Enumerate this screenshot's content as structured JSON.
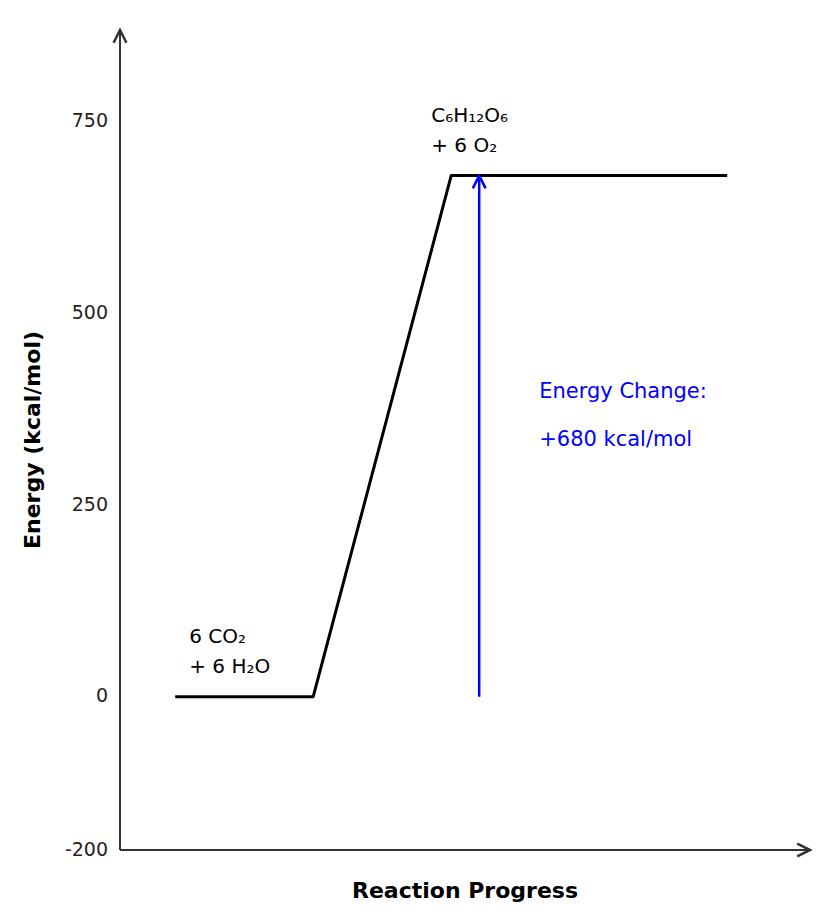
{
  "chart_data": {
    "type": "line",
    "x_label": "Reaction Progress",
    "y_label": "Energy  (kcal/mol)",
    "x": [
      0.8,
      2.8,
      4.8,
      8.8
    ],
    "values": [
      0,
      0,
      680,
      680
    ],
    "color": "#000000",
    "xlim": [
      0,
      10
    ],
    "ylim": [
      -200,
      870
    ],
    "yticks": [
      -200,
      0,
      250,
      500,
      750
    ],
    "tick_labels": "y",
    "grid": false,
    "reactant_label": [
      "6 CO₂",
      "+ 6 H₂O"
    ],
    "product_label": [
      "C₆H₁₂O₆",
      "+ 6 O₂"
    ],
    "energy_change": {
      "start": 0,
      "end": 680,
      "color": "#0000ff",
      "text": [
        "Energy Change:",
        "+680 kcal/mol"
      ]
    }
  }
}
